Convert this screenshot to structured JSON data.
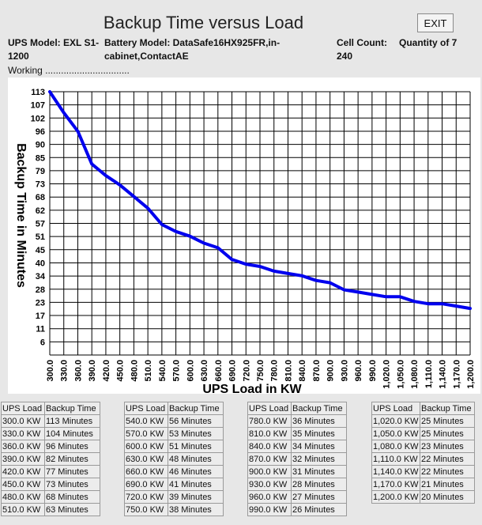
{
  "header": {
    "title": "Backup Time versus Load",
    "exit_label": "EXIT",
    "ups_model": "UPS Model: EXL S1-1200",
    "battery_model": "Battery Model: DataSafe16HX925FR,in-cabinet,ContactAE",
    "cell_count": "Cell Count: 240",
    "quantity": "Quantity of 7",
    "status": "Working ................................"
  },
  "chart_data": {
    "type": "line",
    "title": "",
    "xlabel": "UPS Load in KW",
    "ylabel": "Backup Time in Minutes",
    "x_ticks": [
      "300.0",
      "330.0",
      "360.0",
      "390.0",
      "420.0",
      "450.0",
      "480.0",
      "510.0",
      "540.0",
      "570.0",
      "600.0",
      "630.0",
      "660.0",
      "690.0",
      "720.0",
      "750.0",
      "780.0",
      "810.0",
      "840.0",
      "870.0",
      "900.0",
      "930.0",
      "960.0",
      "990.0",
      "1,020.0",
      "1,050.0",
      "1,080.0",
      "1,110.0",
      "1,140.0",
      "1,170.0",
      "1,200.0"
    ],
    "y_ticks": [
      "113",
      "107",
      "102",
      "96",
      "90",
      "85",
      "79",
      "73",
      "68",
      "62",
      "57",
      "51",
      "45",
      "40",
      "34",
      "28",
      "23",
      "17",
      "11",
      "6"
    ],
    "xlim": [
      300,
      1200
    ],
    "ylim": [
      0,
      113
    ],
    "grid": true,
    "line_color": "#0000ee",
    "series": [
      {
        "x": [
          300,
          330,
          360,
          390,
          420,
          450,
          480,
          510,
          540,
          570,
          600,
          630,
          660,
          690,
          720,
          750,
          780,
          810,
          840,
          870,
          900,
          930,
          960,
          990,
          1020,
          1050,
          1080,
          1110,
          1140,
          1170,
          1200
        ],
        "values": [
          113,
          104,
          96,
          82,
          77,
          73,
          68,
          63,
          56,
          53,
          51,
          48,
          46,
          41,
          39,
          38,
          36,
          35,
          34,
          32,
          31,
          28,
          27,
          26,
          25,
          25,
          23,
          22,
          22,
          21,
          20
        ]
      }
    ]
  },
  "tables": {
    "headers": [
      "UPS Load",
      "Backup Time"
    ],
    "columns": [
      [
        [
          "300.0 KW",
          "113 Minutes"
        ],
        [
          "330.0 KW",
          "104 Minutes"
        ],
        [
          "360.0 KW",
          "96 Minutes"
        ],
        [
          "390.0 KW",
          "82 Minutes"
        ],
        [
          "420.0 KW",
          "77 Minutes"
        ],
        [
          "450.0 KW",
          "73 Minutes"
        ],
        [
          "480.0 KW",
          "68 Minutes"
        ],
        [
          "510.0 KW",
          "63 Minutes"
        ]
      ],
      [
        [
          "540.0 KW",
          "56 Minutes"
        ],
        [
          "570.0 KW",
          "53 Minutes"
        ],
        [
          "600.0 KW",
          "51 Minutes"
        ],
        [
          "630.0 KW",
          "48 Minutes"
        ],
        [
          "660.0 KW",
          "46 Minutes"
        ],
        [
          "690.0 KW",
          "41 Minutes"
        ],
        [
          "720.0 KW",
          "39 Minutes"
        ],
        [
          "750.0 KW",
          "38 Minutes"
        ]
      ],
      [
        [
          "780.0 KW",
          "36 Minutes"
        ],
        [
          "810.0 KW",
          "35 Minutes"
        ],
        [
          "840.0 KW",
          "34 Minutes"
        ],
        [
          "870.0 KW",
          "32 Minutes"
        ],
        [
          "900.0 KW",
          "31 Minutes"
        ],
        [
          "930.0 KW",
          "28 Minutes"
        ],
        [
          "960.0 KW",
          "27 Minutes"
        ],
        [
          "990.0 KW",
          "26 Minutes"
        ]
      ],
      [
        [
          "1,020.0 KW",
          "25 Minutes"
        ],
        [
          "1,050.0 KW",
          "25 Minutes"
        ],
        [
          "1,080.0 KW",
          "23 Minutes"
        ],
        [
          "1,110.0 KW",
          "22 Minutes"
        ],
        [
          "1,140.0 KW",
          "22 Minutes"
        ],
        [
          "1,170.0 KW",
          "21 Minutes"
        ],
        [
          "1,200.0 KW",
          "20 Minutes"
        ]
      ]
    ]
  }
}
